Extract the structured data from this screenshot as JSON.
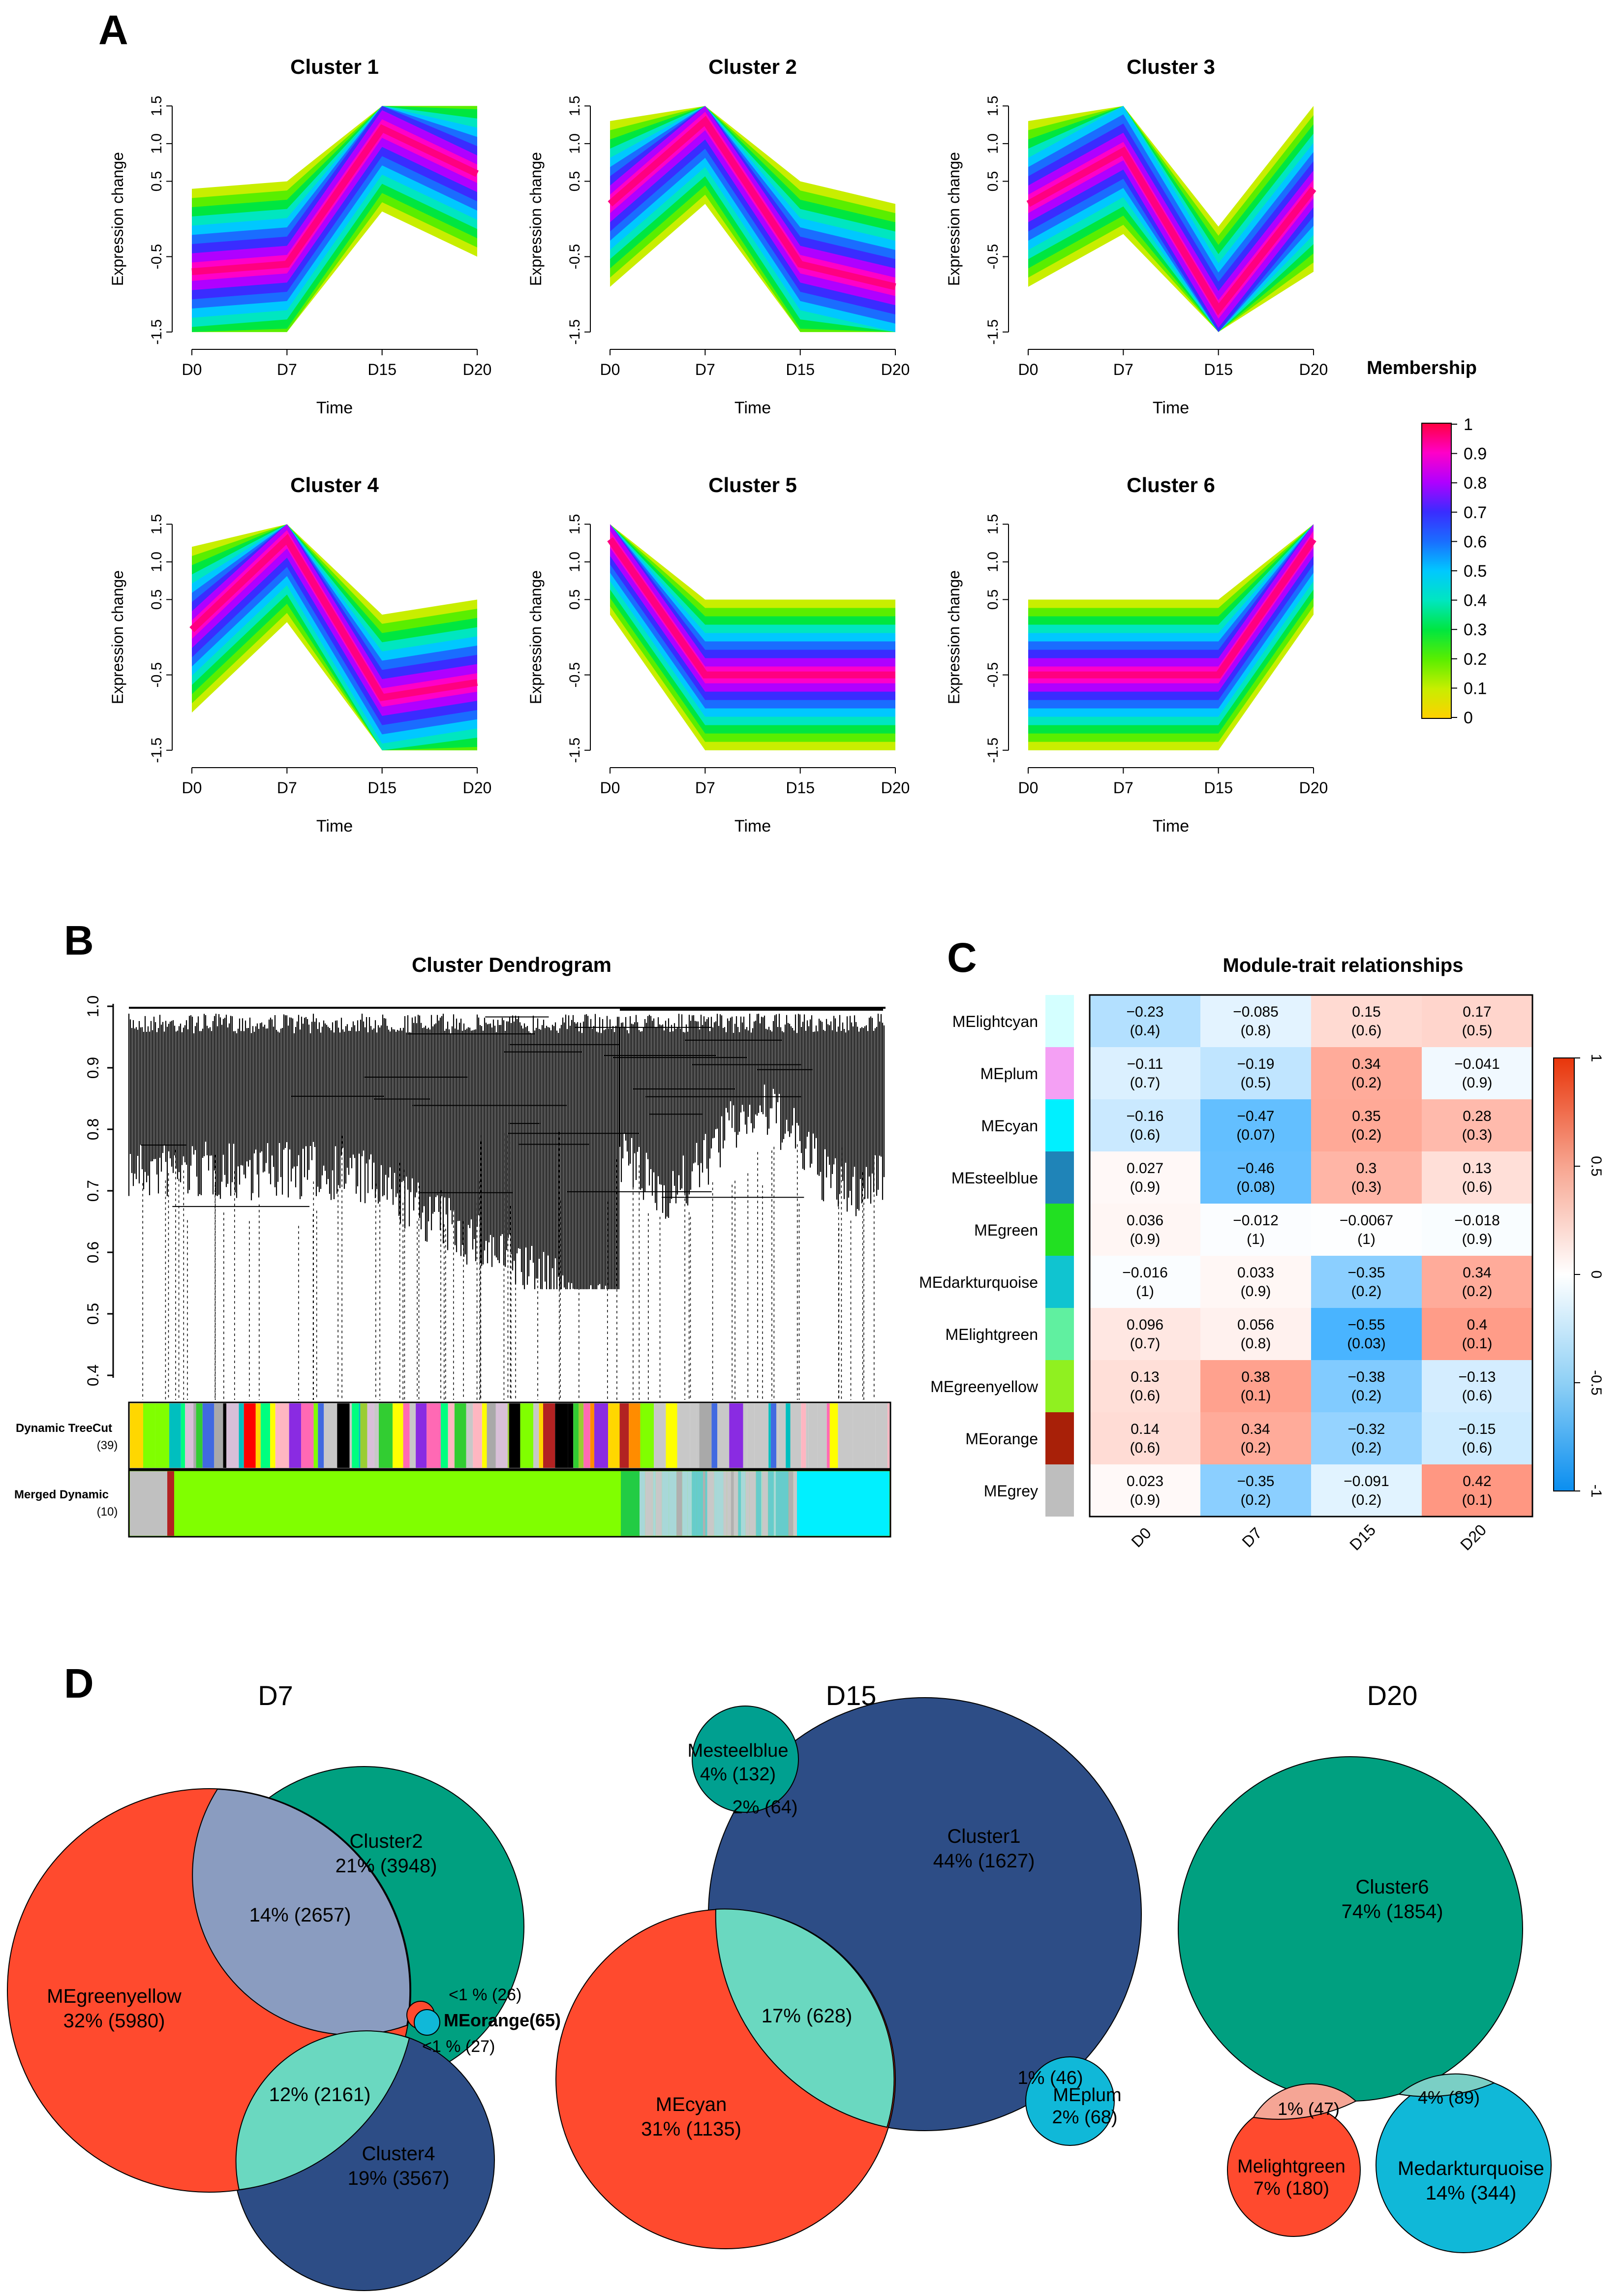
{
  "panel_labels": {
    "a": "A",
    "b": "B",
    "c": "C",
    "d": "D"
  },
  "clusters": {
    "xlabel": "Time",
    "ylabel": "Expression change",
    "time_points": [
      "D0",
      "D7",
      "D15",
      "D20"
    ],
    "y_ticks": [
      "-1.5",
      "-0.5",
      "0.5",
      "1.0",
      "1.5"
    ],
    "items": [
      {
        "title": "Cluster 1",
        "core": [
          -0.7,
          -0.6,
          1.2,
          0.6
        ],
        "spread": 1.1
      },
      {
        "title": "Cluster 2",
        "core": [
          0.2,
          1.3,
          -0.6,
          -0.9
        ],
        "spread": 1.1
      },
      {
        "title": "Cluster 3",
        "core": [
          0.2,
          0.9,
          -1.2,
          0.4
        ],
        "spread": 1.1
      },
      {
        "title": "Cluster 4",
        "core": [
          0.1,
          1.3,
          -0.8,
          -0.6
        ],
        "spread": 1.1
      },
      {
        "title": "Cluster 5",
        "core": [
          1.3,
          -0.5,
          -0.5,
          -0.5
        ],
        "spread": 1.0
      },
      {
        "title": "Cluster 6",
        "core": [
          -0.5,
          -0.5,
          -0.5,
          1.3
        ],
        "spread": 1.0
      }
    ]
  },
  "membership": {
    "title": "Membership",
    "ticks": [
      "1",
      "0.9",
      "0.8",
      "0.7",
      "0.6",
      "0.5",
      "0.4",
      "0.3",
      "0.2",
      "0.1",
      "0"
    ],
    "colors": [
      "#ff0040",
      "#ff00c8",
      "#b000ff",
      "#3a2cff",
      "#1a6dff",
      "#00c8ff",
      "#00e6c0",
      "#00e640",
      "#5aee00",
      "#c8ee00",
      "#ffd000"
    ]
  },
  "dendrogram": {
    "title": "Cluster Dendrogram",
    "y_ticks": [
      "1.0",
      "0.9",
      "0.8",
      "0.7",
      "0.6",
      "0.5",
      "0.4"
    ],
    "row1_label": "Dynamic TreeCut",
    "row1_count": "(39)",
    "row2_label": "Merged Dynamic",
    "row2_count": "(10)"
  },
  "heatmap": {
    "title": "Module-trait relationships",
    "columns": [
      "D0",
      "D7",
      "D15",
      "D20"
    ],
    "legend_ticks": [
      "1",
      "0.5",
      "0",
      "-0.5",
      "-1"
    ],
    "rows": [
      {
        "name": "MElightcyan",
        "color": "#d4ffff",
        "values": [
          "−0.23",
          "−0.085",
          "0.15",
          "0.17"
        ],
        "pvals": [
          "(0.4)",
          "(0.8)",
          "(0.6)",
          "(0.5)"
        ],
        "r": [
          -0.23,
          -0.085,
          0.15,
          0.17
        ]
      },
      {
        "name": "MEplum",
        "color": "#f4a0f4",
        "values": [
          "−0.11",
          "−0.19",
          "0.34",
          "−0.041"
        ],
        "pvals": [
          "(0.7)",
          "(0.5)",
          "(0.2)",
          "(0.9)"
        ],
        "r": [
          -0.11,
          -0.19,
          0.34,
          -0.041
        ]
      },
      {
        "name": "MEcyan",
        "color": "#00f0ff",
        "values": [
          "−0.16",
          "−0.47",
          "0.35",
          "0.28"
        ],
        "pvals": [
          "(0.6)",
          "(0.07)",
          "(0.2)",
          "(0.3)"
        ],
        "r": [
          -0.16,
          -0.47,
          0.35,
          0.28
        ]
      },
      {
        "name": "MEsteelblue",
        "color": "#1f84b8",
        "values": [
          "0.027",
          "−0.46",
          "0.3",
          "0.13"
        ],
        "pvals": [
          "(0.9)",
          "(0.08)",
          "(0.3)",
          "(0.6)"
        ],
        "r": [
          0.027,
          -0.46,
          0.3,
          0.13
        ]
      },
      {
        "name": "MEgreen",
        "color": "#22e022",
        "values": [
          "0.036",
          "−0.012",
          "−0.0067",
          "−0.018"
        ],
        "pvals": [
          "(0.9)",
          "(1)",
          "(1)",
          "(0.9)"
        ],
        "r": [
          0.036,
          -0.012,
          -0.0067,
          -0.018
        ]
      },
      {
        "name": "MEdarkturquoise",
        "color": "#10c4d0",
        "values": [
          "−0.016",
          "0.033",
          "−0.35",
          "0.34"
        ],
        "pvals": [
          "(1)",
          "(0.9)",
          "(0.2)",
          "(0.2)"
        ],
        "r": [
          -0.016,
          0.033,
          -0.35,
          0.34
        ]
      },
      {
        "name": "MElightgreen",
        "color": "#60f0a0",
        "values": [
          "0.096",
          "0.056",
          "−0.55",
          "0.4"
        ],
        "pvals": [
          "(0.7)",
          "(0.8)",
          "(0.03)",
          "(0.1)"
        ],
        "r": [
          0.096,
          0.056,
          -0.55,
          0.4
        ]
      },
      {
        "name": "MEgreenyellow",
        "color": "#90f020",
        "values": [
          "0.13",
          "0.38",
          "−0.38",
          "−0.13"
        ],
        "pvals": [
          "(0.6)",
          "(0.1)",
          "(0.2)",
          "(0.6)"
        ],
        "r": [
          0.13,
          0.38,
          -0.38,
          -0.13
        ]
      },
      {
        "name": "MEorange",
        "color": "#a82008",
        "values": [
          "0.14",
          "0.34",
          "−0.32",
          "−0.15"
        ],
        "pvals": [
          "(0.6)",
          "(0.2)",
          "(0.2)",
          "(0.6)"
        ],
        "r": [
          0.14,
          0.34,
          -0.32,
          -0.15
        ]
      },
      {
        "name": "MEgrey",
        "color": "#bebebe",
        "values": [
          "0.023",
          "−0.35",
          "−0.091",
          "0.42"
        ],
        "pvals": [
          "(0.9)",
          "(0.2)",
          "(0.2)",
          "(0.1)"
        ],
        "r": [
          0.023,
          -0.35,
          -0.091,
          0.42
        ]
      }
    ]
  },
  "venn": {
    "colors": {
      "green": "#00a080",
      "red": "#ff4a2e",
      "navy": "#2d4d86",
      "teal": "#00a090",
      "cyan": "#10b8d8",
      "mint": "#6ad8c0",
      "lavender": "#8a9cc0"
    },
    "d7": {
      "title": "D7",
      "cluster2_name": "Cluster2",
      "cluster2_val": "21% (3948)",
      "mgy_name": "MEgreenyellow",
      "mgy_val": "32% (5980)",
      "cluster4_name": "Cluster4",
      "cluster4_val": "19% (3567)",
      "ov_c2_mgy": "14% (2657)",
      "ov_mgy_c4": "12% (2161)",
      "orange_top": "<1 % (26)",
      "orange_name": "MEorange(65)",
      "orange_bottom": "<1 % (27)"
    },
    "d15": {
      "title": "D15",
      "steel_name": "Mesteelblue",
      "steel_val": "4% (132)",
      "ov_steel_c1": "2% (64)",
      "cluster1_name": "Cluster1",
      "cluster1_val": "44% (1627)",
      "cyan_name": "MEcyan",
      "cyan_val": "31% (1135)",
      "ov_c1_cyan": "17% (628)",
      "ov_plum": "1% (46)",
      "plum_name": "MEplum",
      "plum_val": "2% (68)"
    },
    "d20": {
      "title": "D20",
      "cluster6_name": "Cluster6",
      "cluster6_val": "74% (1854)",
      "ov_lg": "1% (47)",
      "ov_dt": "4% (89)",
      "lg_name": "Melightgreen",
      "lg_val": "7% (180)",
      "dt_name": "Medarkturquoise",
      "dt_val": "14% (344)"
    }
  }
}
